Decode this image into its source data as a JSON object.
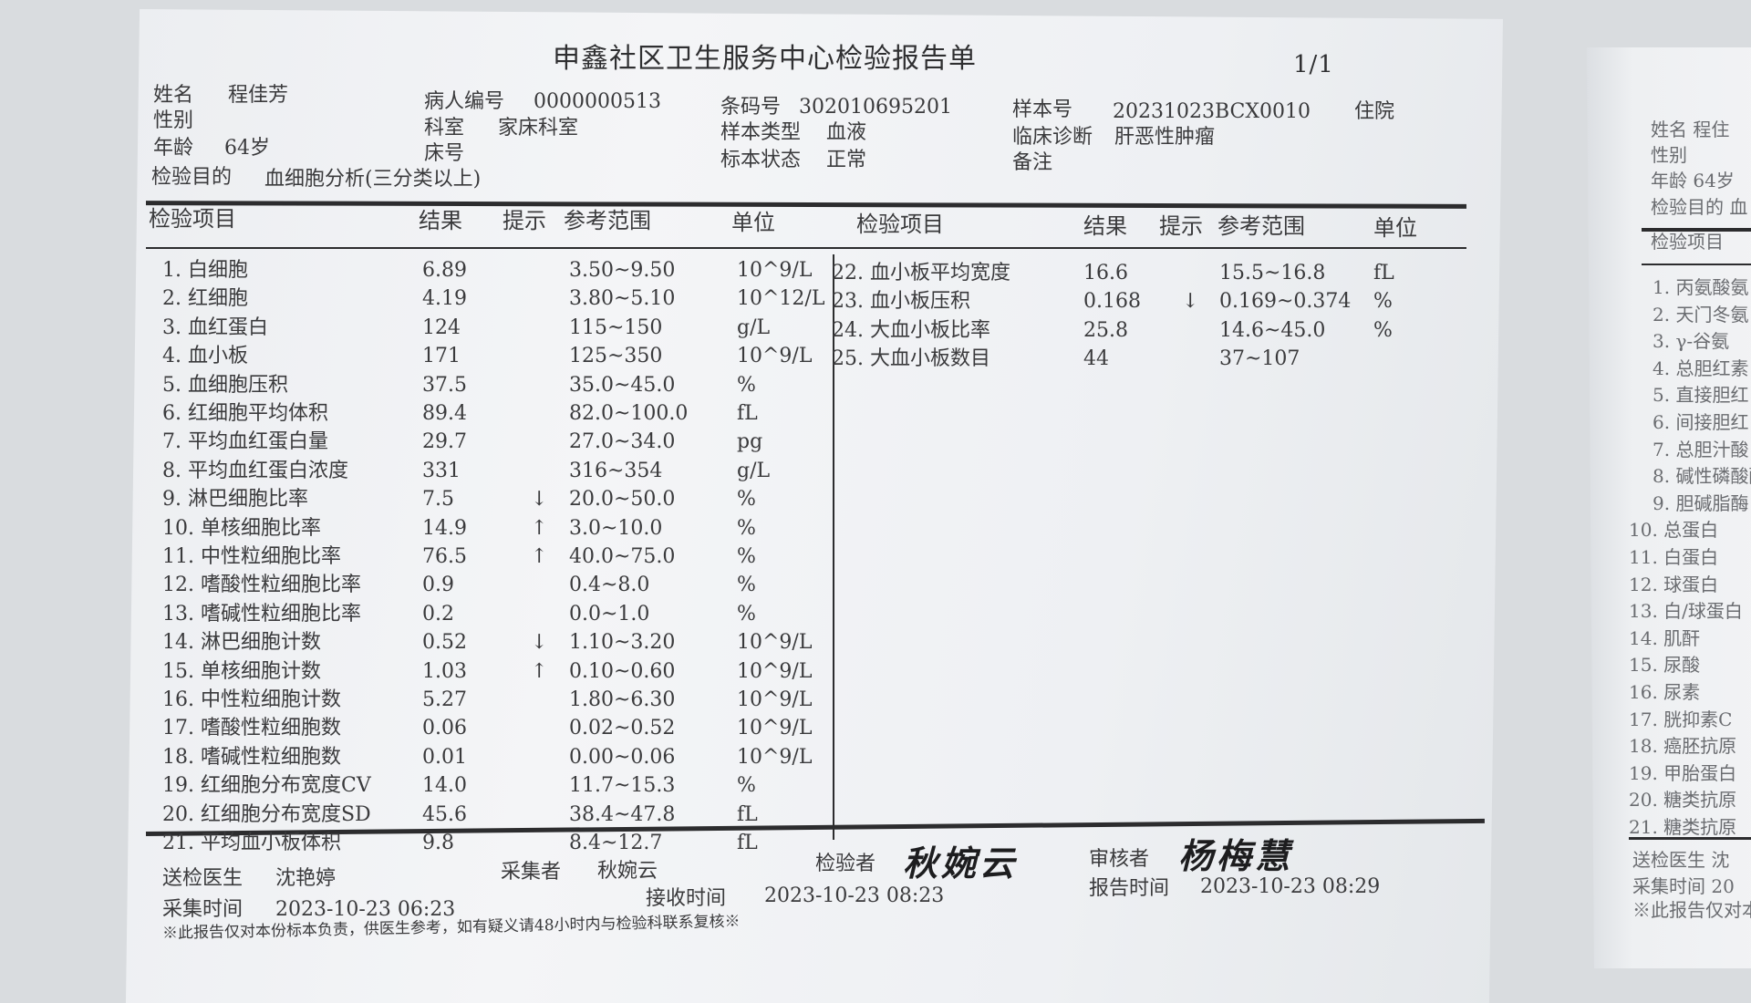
{
  "report": {
    "title": "申鑫社区卫生服务中心检验报告单",
    "page": "1/1",
    "patient": {
      "name_label": "姓名",
      "name": "程佳芳",
      "sex_label": "性别",
      "sex": "",
      "age_label": "年龄",
      "age": "64岁",
      "purpose_label": "检验目的",
      "purpose": "血细胞分析(三分类以上)",
      "patient_no_label": "病人编号",
      "patient_no": "0000000513",
      "dept_label": "科室",
      "dept": "家床科室",
      "bed_label": "床号",
      "bed": "",
      "barcode_label": "条码号",
      "barcode": "302010695201",
      "sample_type_label": "样本类型",
      "sample_type": "血液",
      "sample_state_label": "标本状态",
      "sample_state": "正常",
      "sample_no_label": "样本号",
      "sample_no": "20231023BCX0010",
      "diagnosis_label": "临床诊断",
      "diagnosis": "肝恶性肿瘤",
      "remark_label": "备注",
      "remark": "",
      "inpatient": "住院"
    },
    "columns": {
      "item": "检验项目",
      "result": "结果",
      "flag": "提示",
      "range": "参考范围",
      "unit": "单位"
    },
    "left_rows": [
      [
        "1. 白细胞",
        "6.89",
        "",
        "3.50~9.50",
        "10^9/L"
      ],
      [
        "2. 红细胞",
        "4.19",
        "",
        "3.80~5.10",
        "10^12/L"
      ],
      [
        "3. 血红蛋白",
        "124",
        "",
        "115~150",
        "g/L"
      ],
      [
        "4. 血小板",
        "171",
        "",
        "125~350",
        "10^9/L"
      ],
      [
        "5. 血细胞压积",
        "37.5",
        "",
        "35.0~45.0",
        "%"
      ],
      [
        "6. 红细胞平均体积",
        "89.4",
        "",
        "82.0~100.0",
        "fL"
      ],
      [
        "7. 平均血红蛋白量",
        "29.7",
        "",
        "27.0~34.0",
        "pg"
      ],
      [
        "8. 平均血红蛋白浓度",
        "331",
        "",
        "316~354",
        "g/L"
      ],
      [
        "9. 淋巴细胞比率",
        "7.5",
        "↓",
        "20.0~50.0",
        "%"
      ],
      [
        "10. 单核细胞比率",
        "14.9",
        "↑",
        "3.0~10.0",
        "%"
      ],
      [
        "11. 中性粒细胞比率",
        "76.5",
        "↑",
        "40.0~75.0",
        "%"
      ],
      [
        "12. 嗜酸性粒细胞比率",
        "0.9",
        "",
        "0.4~8.0",
        "%"
      ],
      [
        "13. 嗜碱性粒细胞比率",
        "0.2",
        "",
        "0.0~1.0",
        "%"
      ],
      [
        "14. 淋巴细胞计数",
        "0.52",
        "↓",
        "1.10~3.20",
        "10^9/L"
      ],
      [
        "15. 单核细胞计数",
        "1.03",
        "↑",
        "0.10~0.60",
        "10^9/L"
      ],
      [
        "16. 中性粒细胞计数",
        "5.27",
        "",
        "1.80~6.30",
        "10^9/L"
      ],
      [
        "17. 嗜酸性粒细胞数",
        "0.06",
        "",
        "0.02~0.52",
        "10^9/L"
      ],
      [
        "18. 嗜碱性粒细胞数",
        "0.01",
        "",
        "0.00~0.06",
        "10^9/L"
      ],
      [
        "19. 红细胞分布宽度CV",
        "14.0",
        "",
        "11.7~15.3",
        "%"
      ],
      [
        "20. 红细胞分布宽度SD",
        "45.6",
        "",
        "38.4~47.8",
        "fL"
      ],
      [
        "21. 平均血小板体积",
        "9.8",
        "",
        "8.4~12.7",
        "fL"
      ]
    ],
    "right_rows": [
      [
        "22. 血小板平均宽度",
        "16.6",
        "",
        "15.5~16.8",
        "fL"
      ],
      [
        "23. 血小板压积",
        "0.168",
        "↓",
        "0.169~0.374",
        "%"
      ],
      [
        "24. 大血小板比率",
        "25.8",
        "",
        "14.6~45.0",
        "%"
      ],
      [
        "25. 大血小板数目",
        "44",
        "",
        "37~107",
        ""
      ]
    ],
    "footer": {
      "doctor_label": "送检医生",
      "doctor": "沈艳婷",
      "collector_label": "采集者",
      "collector": "秋婉云",
      "tester_label": "检验者",
      "tester_signature": "秋婉云",
      "reviewer_label": "审核者",
      "reviewer_signature": "杨梅慧",
      "collect_time_label": "采集时间",
      "collect_time": "2023-10-23 06:23",
      "receive_time_label": "接收时间",
      "receive_time": "2023-10-23 08:23",
      "report_time_label": "报告时间",
      "report_time": "2023-10-23 08:29",
      "disclaimer": "※此报告仅对本份标本负责，供医生参考，如有疑义请48小时内与检验科联系复核※"
    }
  },
  "second_sheet": {
    "header": [
      "姓名  程住",
      "性别",
      "年龄  64岁",
      "检验目的  血",
      "检验项目"
    ],
    "items": [
      "1. 丙氨酸氨",
      "2. 天门冬氨",
      "3. γ-谷氨",
      "4. 总胆红素",
      "5. 直接胆红",
      "6. 间接胆红",
      "7. 总胆汁酸",
      "8. 碱性磷酸酶",
      "9. 胆碱脂酶",
      "10. 总蛋白",
      "11. 白蛋白",
      "12. 球蛋白",
      "13. 白/球蛋白",
      "14. 肌酐",
      "15. 尿酸",
      "16. 尿素",
      "17. 胱抑素C",
      "18. 癌胚抗原",
      "19. 甲胎蛋白",
      "20. 糖类抗原",
      "21. 糖类抗原"
    ],
    "footer": [
      "送检医生  沈",
      "采集时间  20",
      "※此报告仅对本份"
    ]
  }
}
